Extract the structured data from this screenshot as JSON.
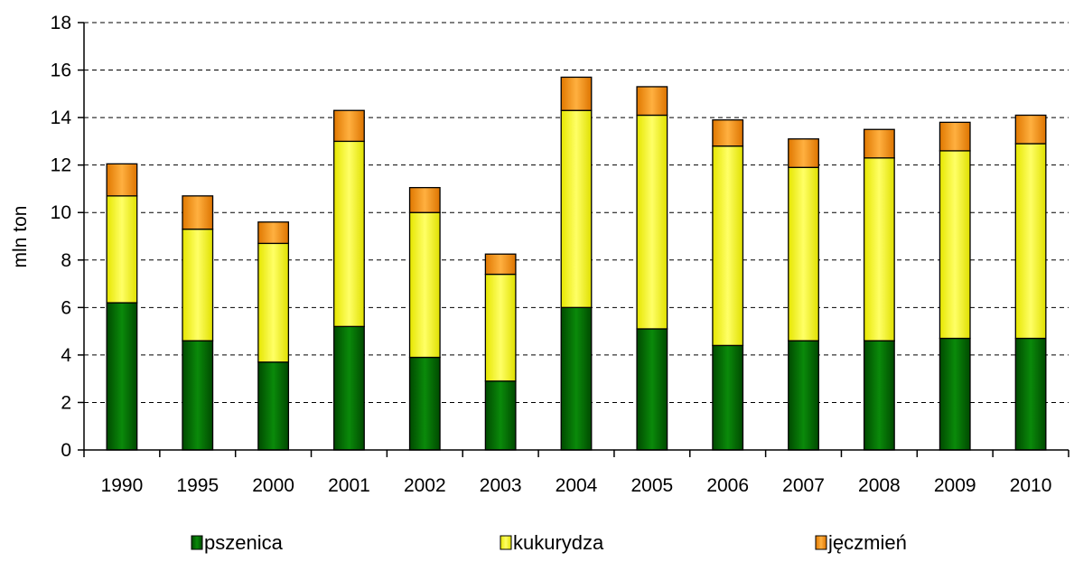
{
  "chart_data": {
    "type": "bar",
    "stacked": true,
    "title": "",
    "xlabel": "",
    "ylabel": "mln ton",
    "ylim": [
      0,
      18
    ],
    "yticks": [
      0,
      2,
      4,
      6,
      8,
      10,
      12,
      14,
      16,
      18
    ],
    "grid": true,
    "legend_position": "bottom",
    "categories": [
      "1990",
      "1995",
      "2000",
      "2001",
      "2002",
      "2003",
      "2004",
      "2005",
      "2006",
      "2007",
      "2008",
      "2009",
      "2010"
    ],
    "series": [
      {
        "name": "pszenica",
        "color": "#007000",
        "values": [
          6.2,
          4.6,
          3.7,
          5.2,
          3.9,
          2.9,
          6.0,
          5.1,
          4.4,
          4.6,
          4.6,
          4.7,
          4.7
        ]
      },
      {
        "name": "kukurydza",
        "color": "#ffff00",
        "values": [
          4.5,
          4.7,
          5.0,
          7.8,
          6.1,
          4.5,
          8.3,
          9.0,
          8.4,
          7.3,
          7.7,
          7.9,
          8.2
        ]
      },
      {
        "name": "jęczmień",
        "color": "#ff9900",
        "values": [
          1.35,
          1.4,
          0.9,
          1.3,
          1.05,
          0.85,
          1.4,
          1.2,
          1.1,
          1.2,
          1.2,
          1.2,
          1.2
        ]
      }
    ]
  }
}
